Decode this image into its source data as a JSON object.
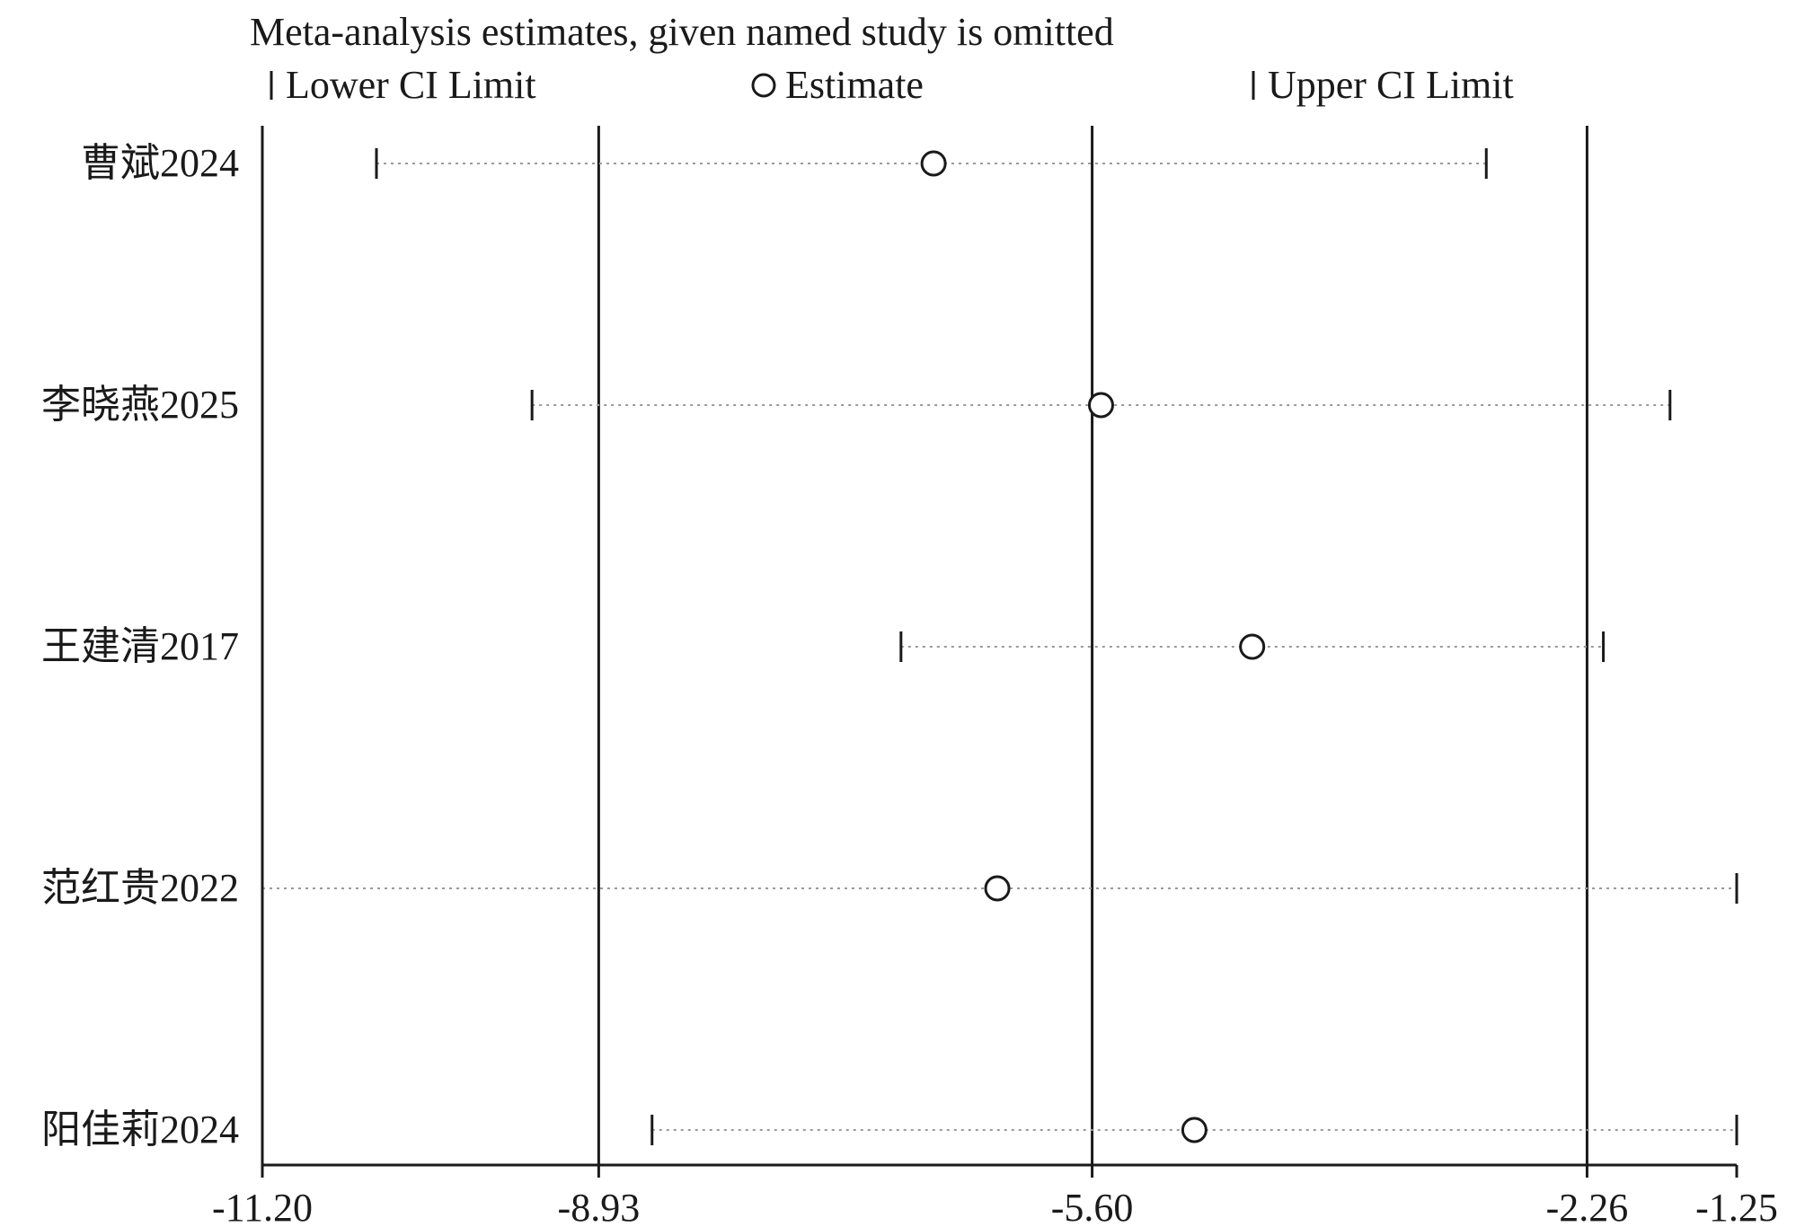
{
  "chart_data": {
    "type": "scatter",
    "title": "Meta-analysis estimates, given named study is omitted",
    "legend": {
      "placement": "top",
      "items": [
        {
          "key": "lower",
          "label": "Lower CI Limit",
          "marker": "tick"
        },
        {
          "key": "estimate",
          "label": "Estimate",
          "marker": "circle"
        },
        {
          "key": "upper",
          "label": "Upper CI Limit",
          "marker": "tick"
        }
      ]
    },
    "studies": [
      {
        "name": "曹斌2024",
        "lower": -10.43,
        "estimate": -6.67,
        "upper": -2.94
      },
      {
        "name": "李晓燕2025",
        "lower": -9.38,
        "estimate": -5.54,
        "upper": -1.7
      },
      {
        "name": "王建清2017",
        "lower": -6.89,
        "estimate": -4.52,
        "upper": -2.15
      },
      {
        "name": "范红贵2022",
        "lower": -11.2,
        "estimate": -6.24,
        "upper": -1.25
      },
      {
        "name": "阳佳莉2024",
        "lower": -8.57,
        "estimate": -4.91,
        "upper": -1.25
      }
    ],
    "x_ticks": [
      {
        "value": -11.2,
        "label": "-11.20"
      },
      {
        "value": -8.93,
        "label": "-8.93"
      },
      {
        "value": -5.6,
        "label": "-5.60"
      },
      {
        "value": -2.26,
        "label": "-2.26"
      },
      {
        "value": -1.25,
        "label": "-1.25"
      }
    ],
    "reference_lines": [
      -11.2,
      -8.93,
      -5.6,
      -2.26
    ],
    "xlim": [
      -11.2,
      -1.25
    ],
    "grid": false
  }
}
